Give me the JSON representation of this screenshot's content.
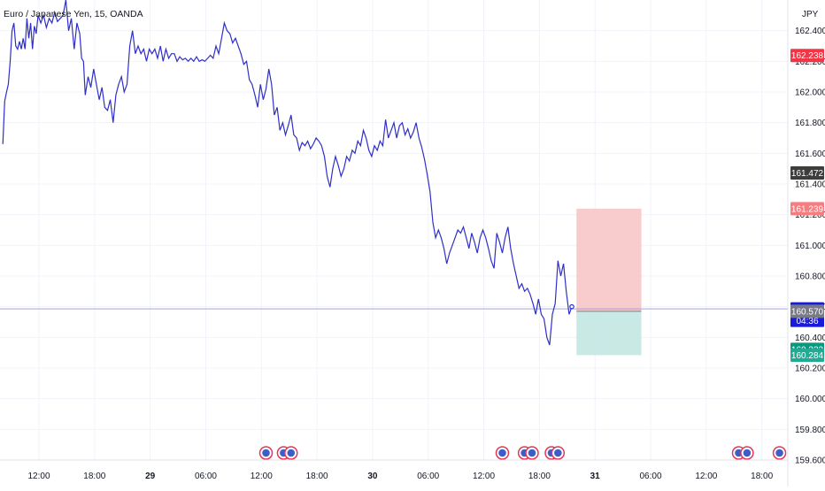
{
  "header": {
    "symbol_title": "Euro / Japanese Yen, 15, OANDA",
    "currency": "JPY"
  },
  "chart_data": {
    "type": "line",
    "title": "Euro / Japanese Yen, 15, OANDA",
    "xlabel": "",
    "ylabel": "",
    "ylim": [
      159.6,
      162.6
    ],
    "grid": true,
    "y_ticks": [
      "162.400",
      "162.200",
      "162.000",
      "161.800",
      "161.600",
      "161.400",
      "161.200",
      "161.000",
      "160.800",
      "160.600",
      "160.400",
      "160.200",
      "160.000",
      "159.800",
      "159.600"
    ],
    "x_ticks": [
      {
        "label": "12:00",
        "t": 0
      },
      {
        "label": "18:00",
        "t": 6
      },
      {
        "label": "29",
        "t": 12
      },
      {
        "label": "06:00",
        "t": 18
      },
      {
        "label": "12:00",
        "t": 24
      },
      {
        "label": "18:00",
        "t": 30
      },
      {
        "label": "30",
        "t": 36
      },
      {
        "label": "06:00",
        "t": 42
      },
      {
        "label": "12:00",
        "t": 48
      },
      {
        "label": "18:00",
        "t": 54
      },
      {
        "label": "31",
        "t": 60
      },
      {
        "label": "06:00",
        "t": 66
      },
      {
        "label": "12:00",
        "t": 72
      },
      {
        "label": "18:00",
        "t": 78
      }
    ],
    "series": [
      {
        "name": "",
        "color": "#2f2fc8",
        "points": [
          [
            -3.9,
            161.66
          ],
          [
            -3.7,
            161.94
          ],
          [
            -3.5,
            162.0
          ],
          [
            -3.3,
            162.05
          ],
          [
            -3.1,
            162.2
          ],
          [
            -2.9,
            162.4
          ],
          [
            -2.7,
            162.45
          ],
          [
            -2.5,
            162.3
          ],
          [
            -2.3,
            162.28
          ],
          [
            -2.1,
            162.33
          ],
          [
            -1.9,
            162.28
          ],
          [
            -1.7,
            162.35
          ],
          [
            -1.5,
            162.28
          ],
          [
            -1.3,
            162.48
          ],
          [
            -1.1,
            162.35
          ],
          [
            -0.9,
            162.45
          ],
          [
            -0.7,
            162.28
          ],
          [
            -0.5,
            162.43
          ],
          [
            -0.3,
            162.38
          ],
          [
            -0.1,
            162.5
          ],
          [
            0.2,
            162.45
          ],
          [
            0.5,
            162.5
          ],
          [
            0.8,
            162.42
          ],
          [
            1.1,
            162.48
          ],
          [
            1.4,
            162.45
          ],
          [
            1.7,
            162.52
          ],
          [
            2.0,
            162.46
          ],
          [
            2.3,
            162.48
          ],
          [
            2.6,
            162.5
          ],
          [
            2.9,
            162.6
          ],
          [
            3.2,
            162.4
          ],
          [
            3.5,
            162.48
          ],
          [
            3.8,
            162.28
          ],
          [
            4.1,
            162.45
          ],
          [
            4.4,
            162.38
          ],
          [
            4.6,
            162.22
          ],
          [
            4.8,
            162.2
          ],
          [
            5.0,
            161.98
          ],
          [
            5.3,
            162.1
          ],
          [
            5.6,
            162.03
          ],
          [
            5.9,
            162.15
          ],
          [
            6.2,
            162.05
          ],
          [
            6.5,
            161.95
          ],
          [
            6.8,
            162.03
          ],
          [
            7.1,
            161.9
          ],
          [
            7.4,
            161.88
          ],
          [
            7.7,
            161.95
          ],
          [
            8.0,
            161.8
          ],
          [
            8.3,
            161.98
          ],
          [
            8.6,
            162.05
          ],
          [
            8.9,
            162.1
          ],
          [
            9.2,
            162.0
          ],
          [
            9.5,
            162.05
          ],
          [
            9.8,
            162.3
          ],
          [
            10.1,
            162.4
          ],
          [
            10.4,
            162.25
          ],
          [
            10.7,
            162.3
          ],
          [
            11.0,
            162.25
          ],
          [
            11.3,
            162.28
          ],
          [
            11.6,
            162.2
          ],
          [
            11.9,
            162.28
          ],
          [
            12.2,
            162.25
          ],
          [
            12.5,
            162.28
          ],
          [
            12.8,
            162.22
          ],
          [
            13.1,
            162.3
          ],
          [
            13.4,
            162.2
          ],
          [
            13.7,
            162.28
          ],
          [
            14.0,
            162.22
          ],
          [
            14.3,
            162.25
          ],
          [
            14.6,
            162.25
          ],
          [
            14.9,
            162.2
          ],
          [
            15.2,
            162.23
          ],
          [
            15.5,
            162.21
          ],
          [
            15.8,
            162.22
          ],
          [
            16.1,
            162.2
          ],
          [
            16.4,
            162.22
          ],
          [
            16.7,
            162.2
          ],
          [
            17.0,
            162.23
          ],
          [
            17.3,
            162.2
          ],
          [
            17.6,
            162.21
          ],
          [
            17.9,
            162.2
          ],
          [
            18.2,
            162.22
          ],
          [
            18.5,
            162.24
          ],
          [
            18.8,
            162.22
          ],
          [
            19.1,
            162.3
          ],
          [
            19.4,
            162.25
          ],
          [
            19.7,
            162.35
          ],
          [
            20.0,
            162.45
          ],
          [
            20.3,
            162.4
          ],
          [
            20.6,
            162.38
          ],
          [
            20.9,
            162.32
          ],
          [
            21.2,
            162.35
          ],
          [
            21.5,
            162.3
          ],
          [
            21.8,
            162.25
          ],
          [
            22.1,
            162.18
          ],
          [
            22.4,
            162.2
          ],
          [
            22.7,
            162.08
          ],
          [
            23.0,
            162.05
          ],
          [
            23.3,
            161.98
          ],
          [
            23.6,
            161.9
          ],
          [
            23.9,
            162.05
          ],
          [
            24.2,
            161.95
          ],
          [
            24.5,
            162.02
          ],
          [
            24.8,
            162.15
          ],
          [
            25.1,
            162.05
          ],
          [
            25.4,
            161.85
          ],
          [
            25.7,
            161.9
          ],
          [
            26.0,
            161.75
          ],
          [
            26.3,
            161.8
          ],
          [
            26.6,
            161.72
          ],
          [
            26.9,
            161.78
          ],
          [
            27.2,
            161.85
          ],
          [
            27.5,
            161.72
          ],
          [
            27.8,
            161.7
          ],
          [
            28.1,
            161.62
          ],
          [
            28.4,
            161.67
          ],
          [
            28.7,
            161.65
          ],
          [
            29.0,
            161.68
          ],
          [
            29.3,
            161.63
          ],
          [
            29.6,
            161.66
          ],
          [
            29.9,
            161.7
          ],
          [
            30.2,
            161.68
          ],
          [
            30.5,
            161.65
          ],
          [
            30.8,
            161.58
          ],
          [
            31.1,
            161.45
          ],
          [
            31.4,
            161.38
          ],
          [
            31.7,
            161.5
          ],
          [
            32.0,
            161.58
          ],
          [
            32.3,
            161.52
          ],
          [
            32.6,
            161.45
          ],
          [
            32.9,
            161.5
          ],
          [
            33.2,
            161.58
          ],
          [
            33.5,
            161.55
          ],
          [
            33.8,
            161.62
          ],
          [
            34.1,
            161.6
          ],
          [
            34.4,
            161.68
          ],
          [
            34.7,
            161.65
          ],
          [
            35.0,
            161.75
          ],
          [
            35.3,
            161.7
          ],
          [
            35.6,
            161.62
          ],
          [
            35.9,
            161.58
          ],
          [
            36.2,
            161.65
          ],
          [
            36.5,
            161.62
          ],
          [
            36.8,
            161.68
          ],
          [
            37.1,
            161.65
          ],
          [
            37.4,
            161.82
          ],
          [
            37.7,
            161.7
          ],
          [
            38.0,
            161.75
          ],
          [
            38.3,
            161.8
          ],
          [
            38.6,
            161.7
          ],
          [
            38.9,
            161.78
          ],
          [
            39.2,
            161.8
          ],
          [
            39.5,
            161.72
          ],
          [
            39.8,
            161.76
          ],
          [
            40.1,
            161.7
          ],
          [
            40.4,
            161.74
          ],
          [
            40.7,
            161.8
          ],
          [
            41.0,
            161.7
          ],
          [
            41.3,
            161.64
          ],
          [
            41.6,
            161.56
          ],
          [
            41.9,
            161.46
          ],
          [
            42.2,
            161.35
          ],
          [
            42.5,
            161.15
          ],
          [
            42.8,
            161.05
          ],
          [
            43.1,
            161.1
          ],
          [
            43.4,
            161.05
          ],
          [
            43.7,
            160.98
          ],
          [
            44.0,
            160.88
          ],
          [
            44.3,
            160.95
          ],
          [
            44.6,
            161.0
          ],
          [
            44.9,
            161.05
          ],
          [
            45.2,
            161.1
          ],
          [
            45.5,
            161.08
          ],
          [
            45.8,
            161.12
          ],
          [
            46.1,
            161.05
          ],
          [
            46.4,
            160.98
          ],
          [
            46.7,
            161.08
          ],
          [
            47.0,
            161.02
          ],
          [
            47.3,
            160.95
          ],
          [
            47.6,
            161.05
          ],
          [
            47.9,
            161.1
          ],
          [
            48.2,
            161.05
          ],
          [
            48.5,
            160.98
          ],
          [
            48.8,
            160.9
          ],
          [
            49.1,
            160.85
          ],
          [
            49.4,
            161.08
          ],
          [
            49.7,
            161.02
          ],
          [
            50.0,
            160.95
          ],
          [
            50.3,
            161.05
          ],
          [
            50.6,
            161.12
          ],
          [
            50.9,
            160.98
          ],
          [
            51.2,
            160.88
          ],
          [
            51.5,
            160.8
          ],
          [
            51.8,
            160.72
          ],
          [
            52.1,
            160.75
          ],
          [
            52.4,
            160.7
          ],
          [
            52.7,
            160.72
          ],
          [
            53.0,
            160.68
          ],
          [
            53.3,
            160.62
          ],
          [
            53.6,
            160.55
          ],
          [
            53.9,
            160.65
          ],
          [
            54.2,
            160.55
          ],
          [
            54.5,
            160.52
          ],
          [
            54.8,
            160.4
          ],
          [
            55.1,
            160.35
          ],
          [
            55.4,
            160.55
          ],
          [
            55.7,
            160.62
          ],
          [
            56.0,
            160.9
          ],
          [
            56.3,
            160.8
          ],
          [
            56.6,
            160.88
          ],
          [
            56.9,
            160.7
          ],
          [
            57.2,
            160.55
          ],
          [
            57.5,
            160.6
          ]
        ]
      }
    ],
    "current_price": "160.586",
    "countdown": "04:36",
    "price_labels": [
      {
        "label": "162.238",
        "value": 162.238,
        "color": "#f23645"
      },
      {
        "label": "161.472",
        "value": 161.472,
        "color": "#3d3d3d"
      },
      {
        "label": "161.239",
        "value": 161.239,
        "color": "#f77c80"
      },
      {
        "label": "160.586",
        "value": 160.586,
        "color": "#1a1adb"
      },
      {
        "label": "160.570",
        "value": 160.57,
        "color": "#787b86"
      },
      {
        "label": "160.322",
        "value": 160.322,
        "color": "#089981"
      },
      {
        "label": "160.284",
        "value": 160.284,
        "color": "#22ab94"
      }
    ],
    "position": {
      "entry": 160.57,
      "stop": 161.239,
      "target": 160.284,
      "t_start": 58,
      "t_end": 65,
      "risk_color": "#f7c3c3",
      "reward_color": "#bfe5e0"
    },
    "event_markers": [
      {
        "t": 24.5
      },
      {
        "t": 26.4
      },
      {
        "t": 27.2
      },
      {
        "t": 50.0
      },
      {
        "t": 52.4
      },
      {
        "t": 53.2
      },
      {
        "t": 55.3
      },
      {
        "t": 56.0
      },
      {
        "t": 75.5
      },
      {
        "t": 76.4
      },
      {
        "t": 79.9
      }
    ]
  }
}
